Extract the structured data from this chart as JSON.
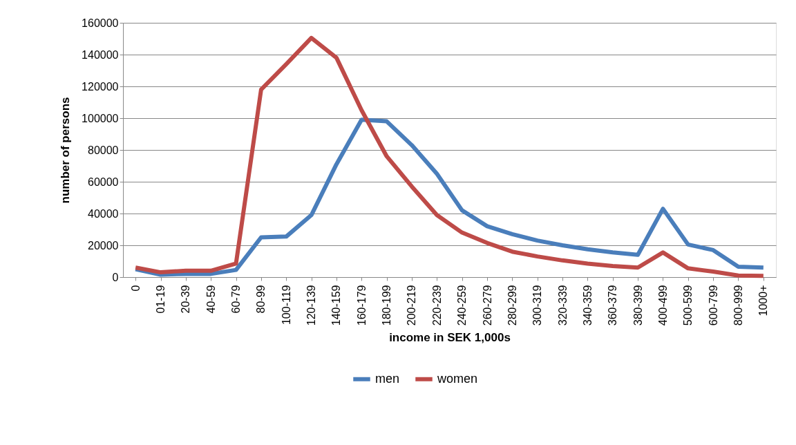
{
  "chart_data": {
    "type": "line",
    "xlabel": "income in SEK 1,000s",
    "ylabel": "number of persons",
    "categories": [
      "0",
      "01-19",
      "20-39",
      "40-59",
      "60-79",
      "80-99",
      "100-119",
      "120-139",
      "140-159",
      "160-179",
      "180-199",
      "200-219",
      "220-239",
      "240-259",
      "260-279",
      "280-299",
      "300-319",
      "320-339",
      "340-359",
      "360-379",
      "380-399",
      "400-499",
      "500-599",
      "600-799",
      "800-999",
      "1000+"
    ],
    "series": [
      {
        "name": "men",
        "color": "#4a7ebb",
        "values": [
          5000,
          1500,
          2000,
          2000,
          4500,
          25000,
          25500,
          39000,
          71000,
          99000,
          98000,
          83000,
          65000,
          42000,
          32000,
          27000,
          23000,
          20000,
          17500,
          15500,
          14000,
          43000,
          20500,
          17000,
          6500,
          6000
        ]
      },
      {
        "name": "women",
        "color": "#be4b48",
        "values": [
          6000,
          3000,
          4000,
          4000,
          8500,
          118000,
          134000,
          150500,
          138000,
          105000,
          76000,
          57000,
          39000,
          28000,
          21500,
          16000,
          13000,
          10500,
          8500,
          7000,
          6000,
          15500,
          5500,
          3500,
          1000,
          800
        ]
      }
    ],
    "ylim": [
      0,
      160000
    ],
    "yticks": [
      0,
      20000,
      40000,
      60000,
      80000,
      100000,
      120000,
      140000,
      160000
    ],
    "grid": "y",
    "legend": "bottom",
    "marker": "none",
    "line_style": "solid"
  }
}
